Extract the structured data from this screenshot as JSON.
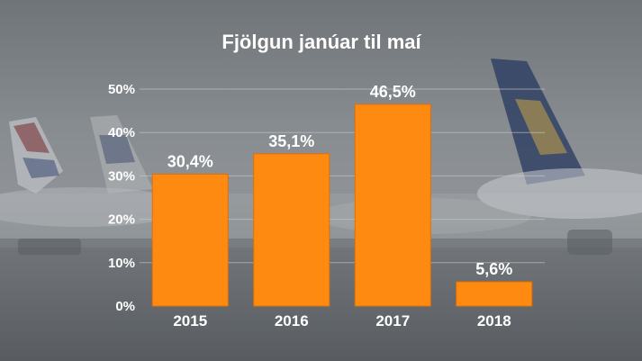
{
  "chart_data": {
    "type": "bar",
    "title": "Fjölgun janúar til maí",
    "categories": [
      "2015",
      "2016",
      "2017",
      "2018"
    ],
    "values": [
      30.4,
      35.1,
      46.5,
      5.6
    ],
    "data_labels": [
      "30,4%",
      "35,1%",
      "46,5%",
      "5,6%"
    ],
    "y_ticks": [
      0,
      10,
      20,
      30,
      40,
      50
    ],
    "y_tick_labels": [
      "0%",
      "10%",
      "20%",
      "30%",
      "40%",
      "50%"
    ],
    "ylim": [
      0,
      50
    ],
    "grid": true,
    "bar_color": "#ff8a12",
    "xlabel": "",
    "ylabel": ""
  }
}
